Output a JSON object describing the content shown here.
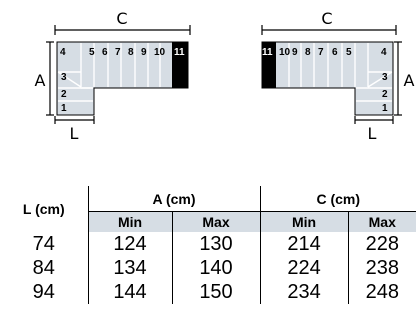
{
  "diagrams": {
    "left": {
      "dim_top": "C",
      "dim_side": "A",
      "dim_bottom": "L",
      "top_steps": [
        "4",
        "5",
        "6",
        "7",
        "8",
        "9",
        "10",
        "11"
      ],
      "bottom_steps": [
        "3",
        "2",
        "1"
      ]
    },
    "right": {
      "dim_top": "C",
      "dim_side": "A",
      "dim_bottom": "L",
      "top_steps": [
        "11",
        "10",
        "9",
        "8",
        "7",
        "6",
        "5",
        "4"
      ],
      "bottom_steps": [
        "3",
        "2",
        "1"
      ]
    },
    "colors": {
      "step_fill": "#d6dde4",
      "highlight_fill": "#000000",
      "line": "#000000"
    }
  },
  "table": {
    "header": {
      "l": "L (cm)",
      "a": "A (cm)",
      "c": "C (cm)"
    },
    "subheader": {
      "a_min": "Min",
      "a_max": "Max",
      "c_min": "Min",
      "c_max": "Max"
    },
    "rows": [
      {
        "l": "74",
        "a_min": "124",
        "a_max": "130",
        "c_min": "214",
        "c_max": "228"
      },
      {
        "l": "84",
        "a_min": "134",
        "a_max": "140",
        "c_min": "224",
        "c_max": "238"
      },
      {
        "l": "94",
        "a_min": "144",
        "a_max": "150",
        "c_min": "234",
        "c_max": "248"
      }
    ],
    "subheader_color": "#d6dde4"
  }
}
